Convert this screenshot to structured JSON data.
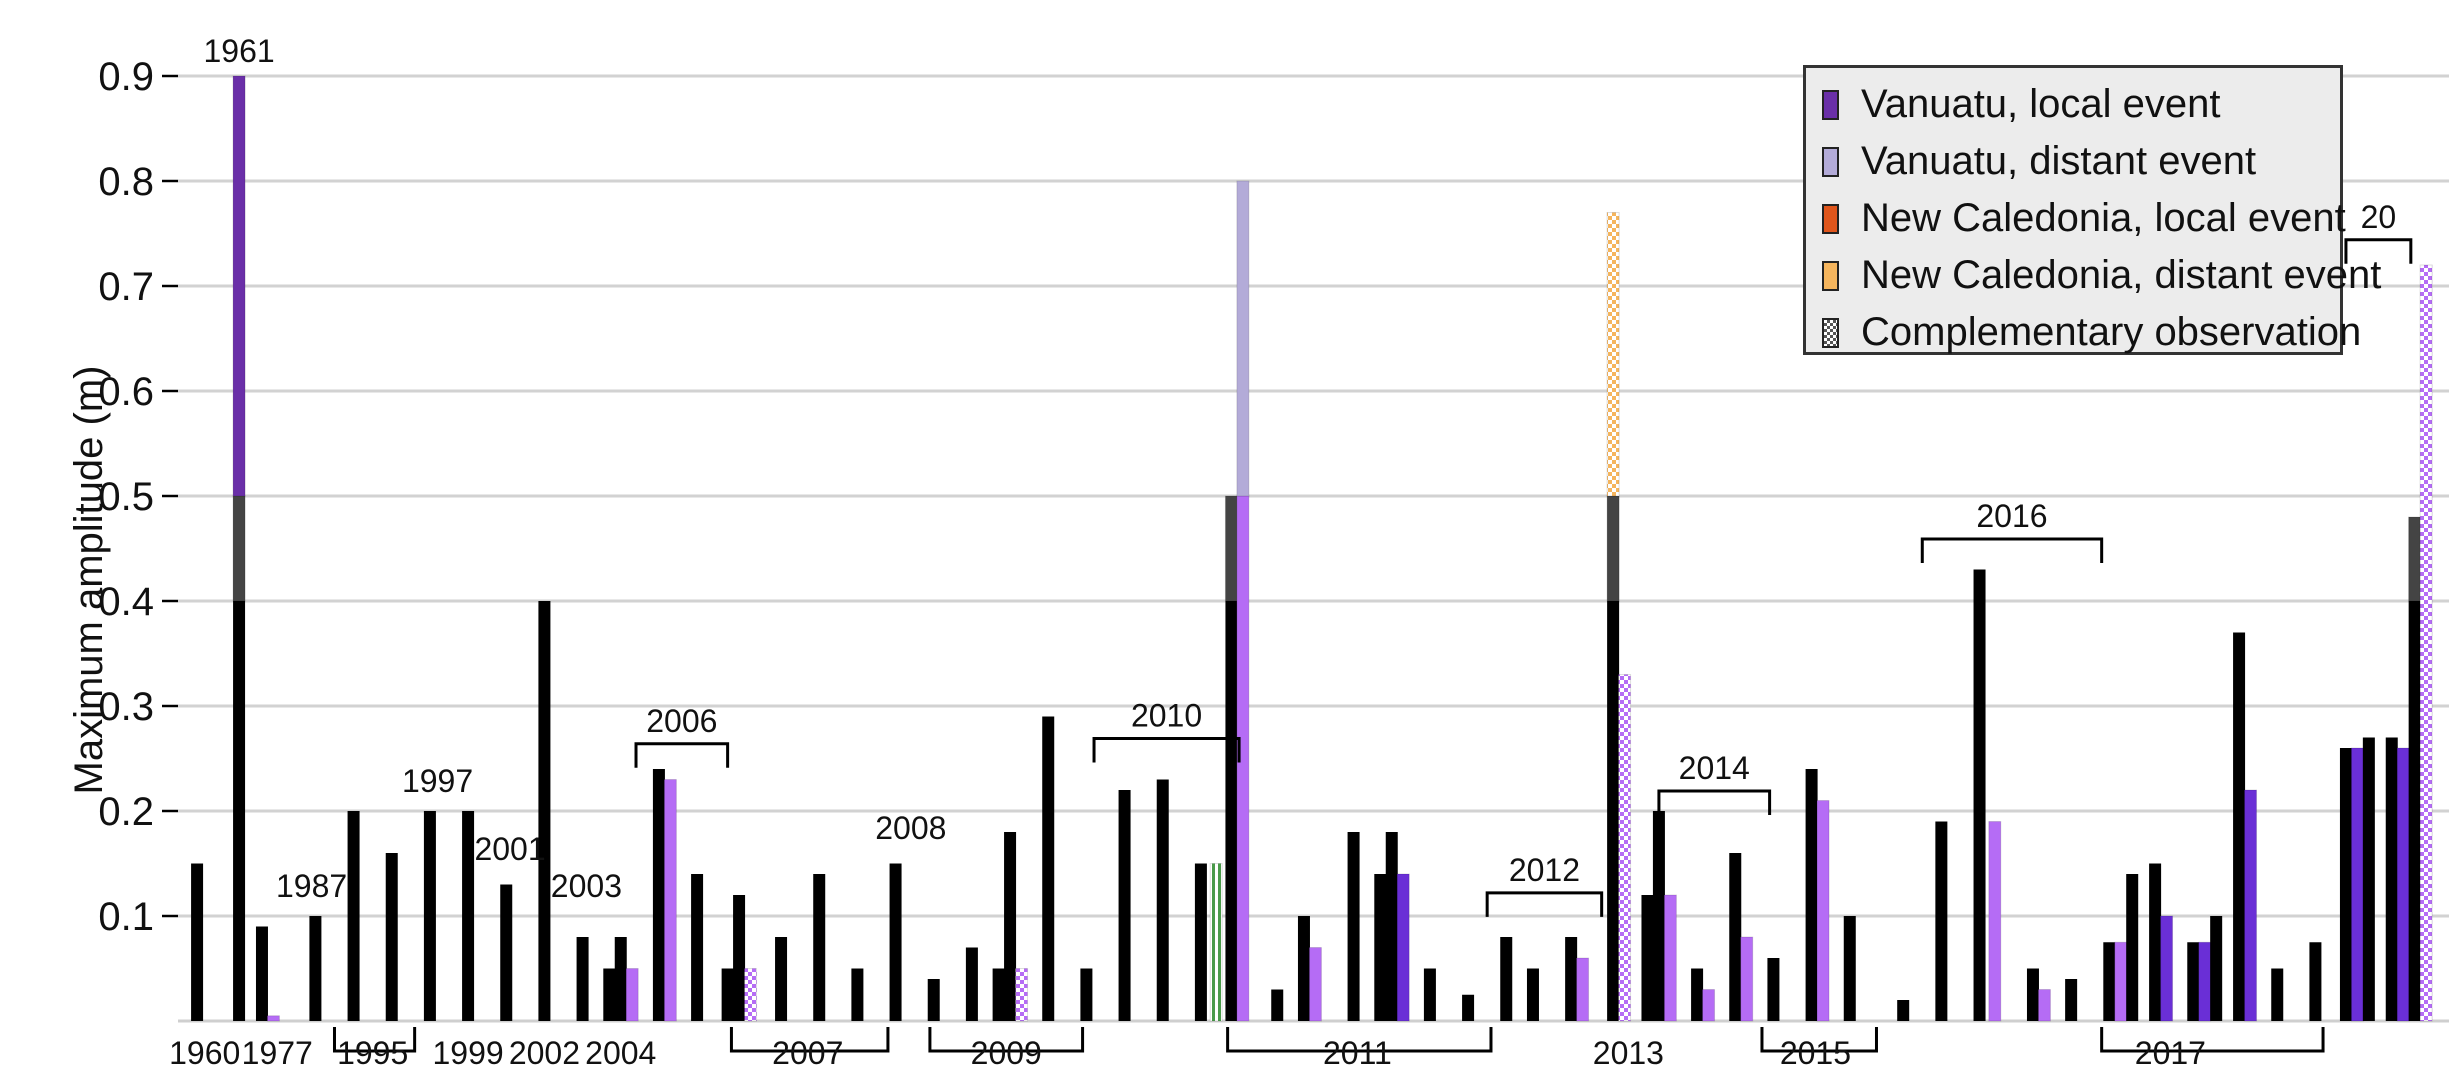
{
  "chart_data": {
    "type": "bar",
    "title": "",
    "ylabel": "Maximum amplitude (m)",
    "xlabel": "",
    "ylim": [
      0,
      0.9
    ],
    "yticks": [
      "0.1",
      "0.2",
      "0.3",
      "0.4",
      "0.5",
      "0.6",
      "0.7",
      "0.8",
      "0.9"
    ],
    "grid": true,
    "legend_position": "top-right",
    "legend": [
      {
        "label": "Vanuatu, local event",
        "color": "#6a2fa8",
        "pattern": "solid"
      },
      {
        "label": "Vanuatu, distant event",
        "color": "#b3abd8",
        "pattern": "solid"
      },
      {
        "label": "New Caledonia, local event",
        "color": "#e0561c",
        "pattern": "solid"
      },
      {
        "label": "New Caledonia, distant event",
        "color": "#f5b55d",
        "pattern": "solid"
      },
      {
        "label": "Complementary observation",
        "color": "#555555",
        "pattern": "checker"
      }
    ],
    "colors": {
      "black": "#000000",
      "dark_grey": "#444444",
      "vanuatu_local": "#6a2fa8",
      "vanuatu_distant": "#b3abd8",
      "violet": "#b56cf5",
      "blue_violet": "#6a2fd6",
      "nc_distant": "#f5b55d",
      "green_edge": "#4a9a4a"
    },
    "x_labels": [
      {
        "text": "1960",
        "x": 0.7
      },
      {
        "text": "1977",
        "x": 2.6
      },
      {
        "text": "1995",
        "x": 5.1
      },
      {
        "text": "1999",
        "x": 7.6
      },
      {
        "text": "2002",
        "x": 9.6
      },
      {
        "text": "2004",
        "x": 11.6
      },
      {
        "text": "2007",
        "x": 16.5
      },
      {
        "text": "2009",
        "x": 21.7
      },
      {
        "text": "2011",
        "x": 30.9
      },
      {
        "text": "2013",
        "x": 38.0
      },
      {
        "text": "2015",
        "x": 42.9
      },
      {
        "text": "2017",
        "x": 52.2
      }
    ],
    "brackets": [
      {
        "label": "",
        "from": 4.1,
        "to": 6.2,
        "dir": "down"
      },
      {
        "label": "",
        "from": 14.5,
        "to": 18.6,
        "dir": "down"
      },
      {
        "label": "",
        "from": 19.7,
        "to": 23.7,
        "dir": "down"
      },
      {
        "label": "",
        "from": 27.5,
        "to": 34.4,
        "dir": "down"
      },
      {
        "label": "",
        "from": 41.5,
        "to": 44.5,
        "dir": "down"
      },
      {
        "label": "",
        "from": 50.4,
        "to": 56.2,
        "dir": "down"
      },
      {
        "label": "2006",
        "from": 12.0,
        "to": 14.4,
        "dir": "up",
        "y": 0.245
      },
      {
        "label": "2010",
        "from": 24.0,
        "to": 27.8,
        "dir": "up",
        "y": 0.25
      },
      {
        "label": "2012",
        "from": 34.3,
        "to": 37.3,
        "dir": "up",
        "y": 0.103
      },
      {
        "label": "2014",
        "from": 38.8,
        "to": 41.7,
        "dir": "up",
        "y": 0.2
      },
      {
        "label": "2016",
        "from": 45.7,
        "to": 50.4,
        "dir": "up",
        "y": 0.44
      },
      {
        "label": "20",
        "from": 56.8,
        "to": 58.5,
        "dir": "up",
        "y": 0.725
      }
    ],
    "annotations": [
      {
        "text": "1961",
        "x": 1.6,
        "y": 0.9
      },
      {
        "text": "1987",
        "x": 3.5,
        "y": 0.105
      },
      {
        "text": "1997",
        "x": 6.8,
        "y": 0.205
      },
      {
        "text": "2001",
        "x": 8.7,
        "y": 0.14
      },
      {
        "text": "2003",
        "x": 10.7,
        "y": 0.105
      },
      {
        "text": "2008",
        "x": 19.2,
        "y": 0.16
      }
    ],
    "bars": [
      {
        "x": 0.5,
        "value": 0.15,
        "color": "black"
      },
      {
        "x": 1.6,
        "value": 0.4,
        "color": "black"
      },
      {
        "x": 1.6,
        "value": 0.1,
        "base": 0.4,
        "color": "dark_grey"
      },
      {
        "x": 1.6,
        "value": 0.4,
        "base": 0.5,
        "color": "vanuatu_local"
      },
      {
        "x": 2.2,
        "value": 0.09,
        "color": "black"
      },
      {
        "x": 2.5,
        "value": 0.005,
        "color": "violet"
      },
      {
        "x": 3.6,
        "value": 0.1,
        "color": "black"
      },
      {
        "x": 4.6,
        "value": 0.2,
        "color": "black"
      },
      {
        "x": 5.6,
        "value": 0.16,
        "color": "black"
      },
      {
        "x": 6.6,
        "value": 0.2,
        "color": "black"
      },
      {
        "x": 7.6,
        "value": 0.2,
        "color": "black"
      },
      {
        "x": 8.6,
        "value": 0.13,
        "color": "black"
      },
      {
        "x": 9.6,
        "value": 0.4,
        "color": "black"
      },
      {
        "x": 10.6,
        "value": 0.08,
        "color": "black"
      },
      {
        "x": 11.3,
        "value": 0.05,
        "color": "black"
      },
      {
        "x": 11.6,
        "value": 0.08,
        "color": "black"
      },
      {
        "x": 11.9,
        "value": 0.05,
        "color": "violet"
      },
      {
        "x": 12.6,
        "value": 0.24,
        "color": "black"
      },
      {
        "x": 12.9,
        "value": 0.23,
        "color": "violet"
      },
      {
        "x": 13.6,
        "value": 0.14,
        "color": "black"
      },
      {
        "x": 14.4,
        "value": 0.05,
        "color": "black"
      },
      {
        "x": 14.7,
        "value": 0.12,
        "color": "black"
      },
      {
        "x": 15.0,
        "value": 0.05,
        "color": "violet",
        "pattern": "checker"
      },
      {
        "x": 15.8,
        "value": 0.08,
        "color": "black"
      },
      {
        "x": 16.8,
        "value": 0.14,
        "color": "black"
      },
      {
        "x": 17.8,
        "value": 0.05,
        "color": "black"
      },
      {
        "x": 18.8,
        "value": 0.15,
        "color": "black"
      },
      {
        "x": 19.8,
        "value": 0.04,
        "color": "black"
      },
      {
        "x": 20.8,
        "value": 0.07,
        "color": "black"
      },
      {
        "x": 21.5,
        "value": 0.05,
        "color": "black"
      },
      {
        "x": 21.8,
        "value": 0.18,
        "color": "black"
      },
      {
        "x": 22.1,
        "value": 0.05,
        "color": "violet",
        "pattern": "checker"
      },
      {
        "x": 22.8,
        "value": 0.29,
        "color": "black"
      },
      {
        "x": 23.8,
        "value": 0.05,
        "color": "black"
      },
      {
        "x": 24.8,
        "value": 0.22,
        "color": "black"
      },
      {
        "x": 25.8,
        "value": 0.23,
        "color": "black"
      },
      {
        "x": 26.8,
        "value": 0.15,
        "color": "black"
      },
      {
        "x": 27.2,
        "value": 0.15,
        "color": "green_edge",
        "pattern": "checker"
      },
      {
        "x": 27.6,
        "value": 0.4,
        "color": "black"
      },
      {
        "x": 27.6,
        "value": 0.1,
        "base": 0.4,
        "color": "dark_grey"
      },
      {
        "x": 27.9,
        "value": 0.5,
        "color": "violet"
      },
      {
        "x": 27.9,
        "value": 0.3,
        "base": 0.5,
        "color": "vanuatu_distant"
      },
      {
        "x": 28.8,
        "value": 0.03,
        "color": "black"
      },
      {
        "x": 29.5,
        "value": 0.1,
        "color": "black"
      },
      {
        "x": 29.8,
        "value": 0.07,
        "color": "violet"
      },
      {
        "x": 30.8,
        "value": 0.18,
        "color": "black"
      },
      {
        "x": 31.5,
        "value": 0.14,
        "color": "black"
      },
      {
        "x": 31.8,
        "value": 0.18,
        "color": "black"
      },
      {
        "x": 32.1,
        "value": 0.14,
        "color": "blue_violet"
      },
      {
        "x": 32.8,
        "value": 0.05,
        "color": "black"
      },
      {
        "x": 33.8,
        "value": 0.025,
        "color": "black"
      },
      {
        "x": 34.8,
        "value": 0.08,
        "color": "black"
      },
      {
        "x": 35.5,
        "value": 0.05,
        "color": "black"
      },
      {
        "x": 36.5,
        "value": 0.08,
        "color": "black"
      },
      {
        "x": 36.8,
        "value": 0.06,
        "color": "violet"
      },
      {
        "x": 37.6,
        "value": 0.4,
        "color": "black"
      },
      {
        "x": 37.6,
        "value": 0.1,
        "base": 0.4,
        "color": "dark_grey"
      },
      {
        "x": 37.6,
        "value": 0.27,
        "base": 0.5,
        "color": "nc_distant",
        "pattern": "checker"
      },
      {
        "x": 37.9,
        "value": 0.33,
        "color": "violet",
        "pattern": "checker"
      },
      {
        "x": 38.5,
        "value": 0.12,
        "color": "black"
      },
      {
        "x": 38.8,
        "value": 0.2,
        "color": "black"
      },
      {
        "x": 39.1,
        "value": 0.12,
        "color": "violet"
      },
      {
        "x": 39.8,
        "value": 0.05,
        "color": "black"
      },
      {
        "x": 40.1,
        "value": 0.03,
        "color": "violet"
      },
      {
        "x": 40.8,
        "value": 0.16,
        "color": "black"
      },
      {
        "x": 41.1,
        "value": 0.08,
        "color": "violet"
      },
      {
        "x": 41.8,
        "value": 0.06,
        "color": "black"
      },
      {
        "x": 42.8,
        "value": 0.24,
        "color": "black"
      },
      {
        "x": 43.1,
        "value": 0.21,
        "color": "violet"
      },
      {
        "x": 43.8,
        "value": 0.1,
        "color": "black"
      },
      {
        "x": 45.2,
        "value": 0.02,
        "color": "black"
      },
      {
        "x": 46.2,
        "value": 0.19,
        "color": "black"
      },
      {
        "x": 47.2,
        "value": 0.43,
        "color": "black"
      },
      {
        "x": 47.6,
        "value": 0.19,
        "color": "violet"
      },
      {
        "x": 48.6,
        "value": 0.05,
        "color": "black"
      },
      {
        "x": 48.9,
        "value": 0.03,
        "color": "violet"
      },
      {
        "x": 49.6,
        "value": 0.04,
        "color": "black"
      },
      {
        "x": 50.6,
        "value": 0.075,
        "color": "black"
      },
      {
        "x": 50.9,
        "value": 0.075,
        "color": "violet"
      },
      {
        "x": 51.2,
        "value": 0.14,
        "color": "black"
      },
      {
        "x": 51.8,
        "value": 0.15,
        "color": "black"
      },
      {
        "x": 52.1,
        "value": 0.1,
        "color": "blue_violet"
      },
      {
        "x": 52.8,
        "value": 0.075,
        "color": "black"
      },
      {
        "x": 53.1,
        "value": 0.075,
        "color": "blue_violet"
      },
      {
        "x": 53.4,
        "value": 0.1,
        "color": "black"
      },
      {
        "x": 54.0,
        "value": 0.37,
        "color": "black"
      },
      {
        "x": 54.3,
        "value": 0.22,
        "color": "blue_violet"
      },
      {
        "x": 55.0,
        "value": 0.05,
        "color": "black"
      },
      {
        "x": 56.0,
        "value": 0.075,
        "color": "black"
      },
      {
        "x": 56.8,
        "value": 0.26,
        "color": "black"
      },
      {
        "x": 57.1,
        "value": 0.26,
        "color": "blue_violet"
      },
      {
        "x": 57.4,
        "value": 0.27,
        "color": "black"
      },
      {
        "x": 58.0,
        "value": 0.27,
        "color": "black"
      },
      {
        "x": 58.3,
        "value": 0.26,
        "color": "blue_violet"
      },
      {
        "x": 58.6,
        "value": 0.4,
        "color": "black"
      },
      {
        "x": 58.6,
        "value": 0.08,
        "base": 0.4,
        "color": "dark_grey"
      },
      {
        "x": 58.9,
        "value": 0.72,
        "color": "violet",
        "pattern": "checker"
      }
    ]
  }
}
